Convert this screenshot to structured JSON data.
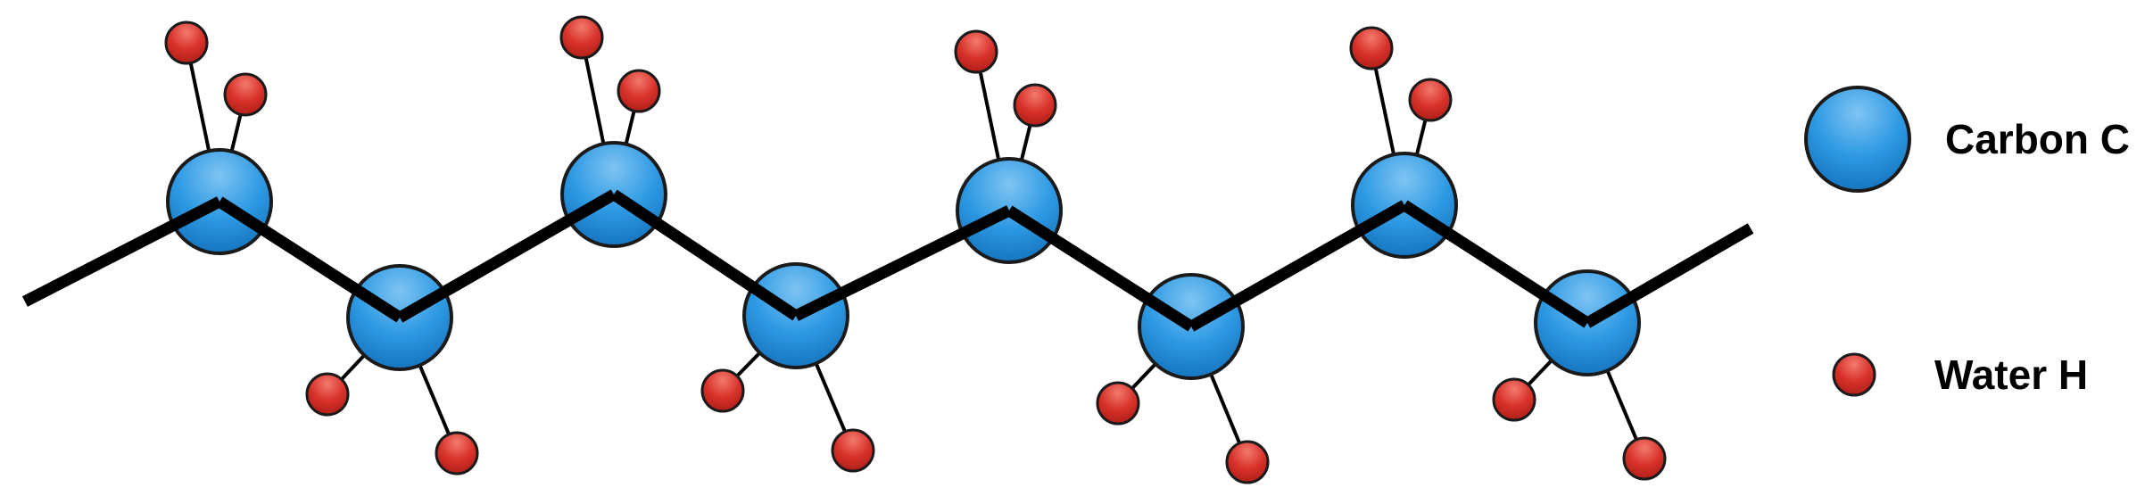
{
  "diagram": {
    "type": "molecular-chain",
    "carbon_count": 8,
    "hydrogen_per_carbon": 2,
    "colors": {
      "carbon_fill": "#2e9ae4",
      "carbon_highlight": "#7fc4f2",
      "carbon_stroke": "#1a1a1a",
      "hydrogen_fill": "#d8322a",
      "hydrogen_highlight": "#f27a6e",
      "hydrogen_stroke": "#1a1a1a",
      "bond": "#000000"
    }
  },
  "legend": {
    "carbon_label": "Carbon C",
    "hydrogen_label": "Water H"
  }
}
